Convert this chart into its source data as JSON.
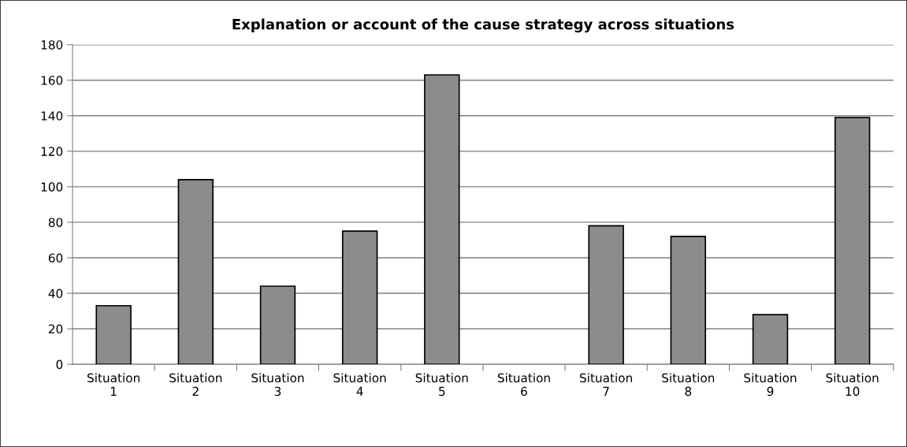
{
  "chart_data": {
    "type": "bar",
    "title": "Explanation or account of the cause strategy across situations",
    "categories": [
      "Situation\n1",
      "Situation\n2",
      "Situation\n3",
      "Situation\n4",
      "Situation\n5",
      "Situation\n6",
      "Situation\n7",
      "Situation\n8",
      "Situation\n9",
      "Situation\n10"
    ],
    "values": [
      33,
      104,
      44,
      75,
      163,
      0,
      78,
      72,
      28,
      139
    ],
    "color": "#8c8c8c",
    "ylim": [
      0,
      180
    ],
    "yticks": [
      0,
      20,
      40,
      60,
      80,
      100,
      120,
      140,
      160,
      180
    ],
    "grid": "y"
  }
}
